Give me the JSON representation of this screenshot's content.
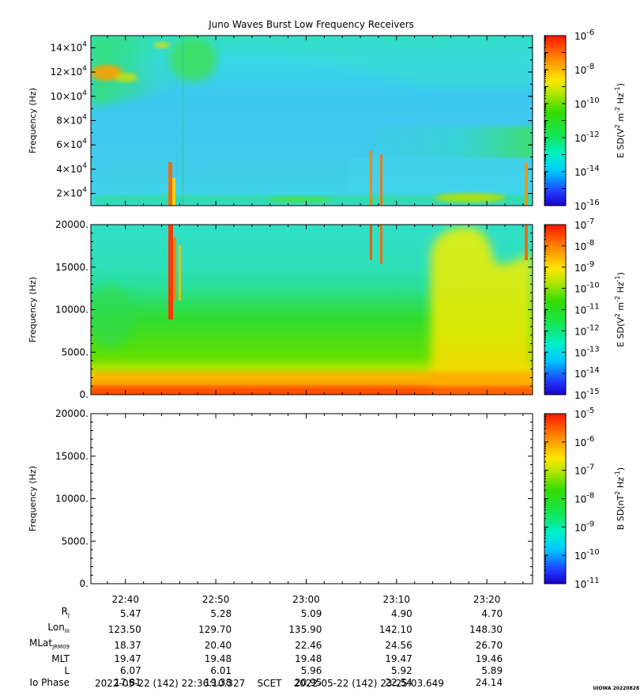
{
  "title": "Juno Waves Burst Low Frequency Receivers",
  "colors": {
    "background": "#ffffff",
    "axis": "#000000"
  },
  "time_axis": {
    "ticks": [
      "22:40",
      "22:50",
      "23:00",
      "23:10",
      "23:20"
    ],
    "footer": "2022-05-22 (142) 22:36:10.327    SCET    2022-05-22 (142) 23:25:03.649"
  },
  "credit": "UIOWA 20220828",
  "ephemeris": [
    {
      "label": "R",
      "sub": "J",
      "values": [
        "5.47",
        "5.28",
        "5.09",
        "4.90",
        "4.70"
      ]
    },
    {
      "label": "Lon",
      "sub": "III",
      "values": [
        "123.50",
        "129.70",
        "135.90",
        "142.10",
        "148.30"
      ]
    },
    {
      "label": "MLat",
      "sub": "JRM09",
      "values": [
        "18.37",
        "20.40",
        "22.46",
        "24.56",
        "26.70"
      ]
    },
    {
      "label": "MLT",
      "sub": "",
      "values": [
        "19.47",
        "19.48",
        "19.48",
        "19.47",
        "19.46"
      ]
    },
    {
      "label": "L",
      "sub": "",
      "values": [
        "6.07",
        "6.01",
        "5.96",
        "5.92",
        "5.89"
      ]
    },
    {
      "label": "Io Phase",
      "sub": "",
      "values": [
        "17.81",
        "19.38",
        "20.95",
        "22.54",
        "24.14"
      ]
    }
  ],
  "chart_data": [
    {
      "type": "heatmap",
      "ylabel": "Frequency (Hz)",
      "y_tick_mantissa": [
        "2",
        "4",
        "6",
        "8",
        "10",
        "12",
        "14"
      ],
      "y_tick_exp": "4",
      "ylim": [
        10000,
        150000
      ],
      "colorbar": {
        "label": "E SD",
        "label_unit": "(V",
        "label_tail": " m",
        "label_hz": " Hz",
        "exps": [
          "-6",
          "-8",
          "-10",
          "-12",
          "-14",
          "-16"
        ],
        "range_log": [
          -16,
          -6
        ]
      },
      "description_levels": "background near 1e-13 (cyan-blue), enhanced green band at low-mid frequencies, orange/yellow patch near 120000 Hz at start"
    },
    {
      "type": "heatmap",
      "ylabel": "Frequency (Hz)",
      "y_ticks": [
        "0.",
        "5000.",
        "10000.",
        "15000.",
        "20000."
      ],
      "ylim": [
        0,
        20000
      ],
      "colorbar": {
        "label": "E SD",
        "label_unit": "(V",
        "label_tail": " m",
        "label_hz": " Hz",
        "exps": [
          "-7",
          "-8",
          "-9",
          "-10",
          "-11",
          "-12",
          "-13",
          "-14",
          "-15"
        ],
        "range_log": [
          -15,
          -7
        ]
      },
      "description_levels": "intense emission (red/orange) below 2000 Hz, broadband green, yellow enhancement near 23:17-23:21"
    },
    {
      "type": "heatmap",
      "ylabel": "Frequency (Hz)",
      "y_ticks": [
        "0.",
        "5000.",
        "10000.",
        "15000.",
        "20000."
      ],
      "ylim": [
        0,
        20000
      ],
      "colorbar": {
        "label": "B SD",
        "label_unit": "(nT",
        "label_tail": "",
        "label_hz": " Hz",
        "exps": [
          "-5",
          "-6",
          "-7",
          "-8",
          "-9",
          "-10",
          "-11"
        ],
        "range_log": [
          -11,
          -5
        ]
      },
      "description_levels": "no data"
    }
  ]
}
